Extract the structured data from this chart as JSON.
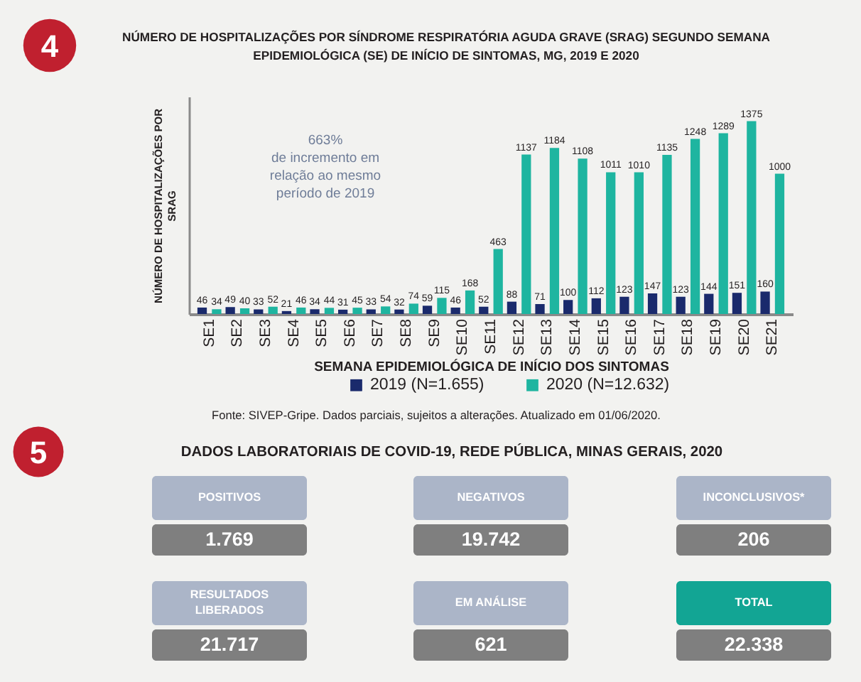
{
  "chart_data": [
    {
      "type": "bar",
      "title": "NÚMERO DE HOSPITALIZAÇÕES POR SÍNDROME RESPIRATÓRIA AGUDA GRAVE (SRAG) SEGUNDO SEMANA EPIDEMIOLÓGICA (SE) DE INÍCIO DE SINTOMAS, MG, 2019 E 2020",
      "xlabel": "SEMANA EPIDEMIOLÓGICA DE INÍCIO DOS SINTOMAS",
      "ylabel": "NÚMERO DE HOSPITALIZAÇÕES POR SRAG",
      "categories": [
        "SE1",
        "SE2",
        "SE3",
        "SE4",
        "SE5",
        "SE6",
        "SE7",
        "SE8",
        "SE9",
        "SE10",
        "SE11",
        "SE12",
        "SE13",
        "SE14",
        "SE15",
        "SE16",
        "SE17",
        "SE18",
        "SE19",
        "SE20",
        "SE21"
      ],
      "series": [
        {
          "name": "2019 (N=1.655)",
          "color": "#1a2a6c",
          "values": [
            46,
            49,
            33,
            21,
            34,
            31,
            33,
            32,
            59,
            46,
            52,
            88,
            71,
            100,
            112,
            123,
            147,
            123,
            144,
            151,
            160
          ]
        },
        {
          "name": "2020 (N=12.632)",
          "color": "#1eb5a0",
          "values": [
            34,
            40,
            52,
            46,
            44,
            45,
            54,
            74,
            115,
            168,
            463,
            1137,
            1184,
            1108,
            1011,
            1010,
            1135,
            1248,
            1289,
            1375,
            1000
          ]
        }
      ],
      "ylim": [
        0,
        1550
      ],
      "data_labels": true,
      "legend": "bottom",
      "grid": false,
      "tick_labels": "x",
      "annotations": [
        "4",
        "663%\nde incremento em\nrelação ao mesmo\nperíodo de 2019",
        "Fonte: SIVEP-Gripe. Dados parciais, sujeitos a alterações. Atualizado em 01/06/2020."
      ]
    },
    {
      "type": "other",
      "title": "DADOS LABORATORIAIS DE COVID-19, REDE PÚBLICA, MINAS GERAIS, 2020",
      "categories": [
        "POSITIVOS",
        "NEGATIVOS",
        "INCONCLUSIVOS*",
        "RESULTADOS LIBERADOS",
        "EM ANÁLISE",
        "TOTAL"
      ],
      "value_labels": [
        "1.769",
        "19.742",
        "206",
        "21.717",
        "621",
        "22.338"
      ],
      "colors": [
        "#abb5c8",
        "#abb5c8",
        "#abb5c8",
        "#abb5c8",
        "#abb5c8",
        "#12a594"
      ],
      "annotations": [
        "5"
      ]
    }
  ]
}
